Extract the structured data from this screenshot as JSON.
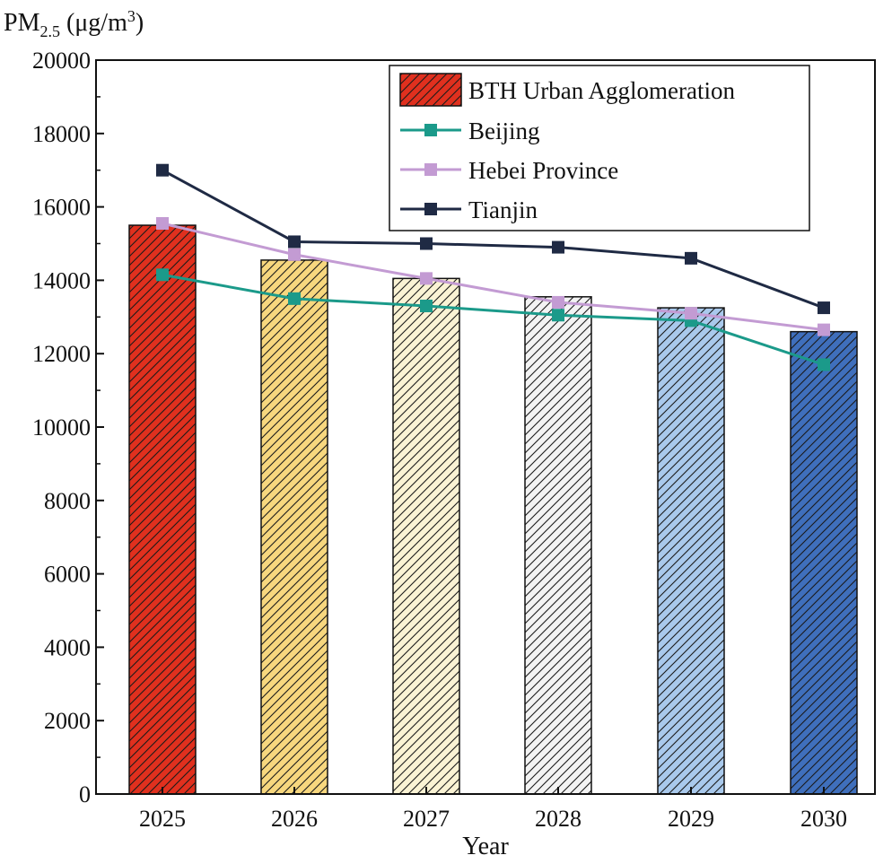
{
  "chart_data": {
    "type": "bar",
    "title": "",
    "ylabel": {
      "main": "PM",
      "sub": "2.5",
      "unit_prefix": " (μg/m",
      "unit_sup": "3",
      "unit_suffix": ")"
    },
    "xlabel": "Year",
    "ylim": [
      0,
      20000
    ],
    "yticks": [
      0,
      2000,
      4000,
      6000,
      8000,
      10000,
      12000,
      14000,
      16000,
      18000,
      20000
    ],
    "categories": [
      "2025",
      "2026",
      "2027",
      "2028",
      "2029",
      "2030"
    ],
    "bars": {
      "name": "BTH Urban Agglomeration",
      "values": [
        15500,
        14550,
        14050,
        13550,
        13250,
        12600
      ],
      "colors": [
        "#e0301e",
        "#f7d77e",
        "#faf3d4",
        "#f3f3f3",
        "#a9c9ec",
        "#3f6fbc"
      ],
      "hatched": true
    },
    "lines": [
      {
        "name": "Beijing",
        "color": "#1b9a8a",
        "marker": "square",
        "values": [
          14150,
          13500,
          13300,
          13050,
          12900,
          11700
        ]
      },
      {
        "name": "Hebei Province",
        "color": "#c39bd3",
        "marker": "square",
        "values": [
          15550,
          14700,
          14050,
          13400,
          13100,
          12650
        ]
      },
      {
        "name": "Tianjin",
        "color": "#1f2a44",
        "marker": "square",
        "values": [
          17000,
          15050,
          15000,
          14900,
          14600,
          13250
        ]
      }
    ],
    "legend": {
      "position": "top-right"
    },
    "grid": false
  }
}
